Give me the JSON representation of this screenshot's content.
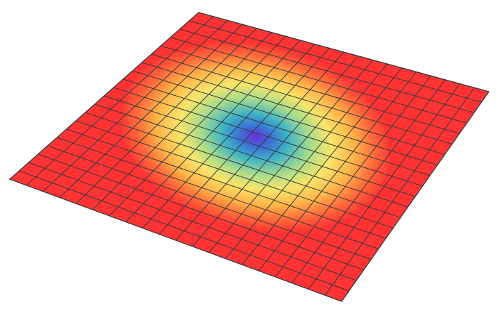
{
  "surface": {
    "grid_divisions": 20,
    "colormap": [
      {
        "stop": 0.0,
        "color": "#6b2fd8"
      },
      {
        "stop": 0.12,
        "color": "#3a76d6"
      },
      {
        "stop": 0.24,
        "color": "#3fb3c6"
      },
      {
        "stop": 0.4,
        "color": "#a8dc8a"
      },
      {
        "stop": 0.55,
        "color": "#f7e56a"
      },
      {
        "stop": 0.72,
        "color": "#ffb347"
      },
      {
        "stop": 0.86,
        "color": "#ff6a3a"
      },
      {
        "stop": 1.0,
        "color": "#ff3333"
      }
    ],
    "edge_color": "#ff3333",
    "gridline_color": "#2f3a3d",
    "shape": "radial-well"
  }
}
